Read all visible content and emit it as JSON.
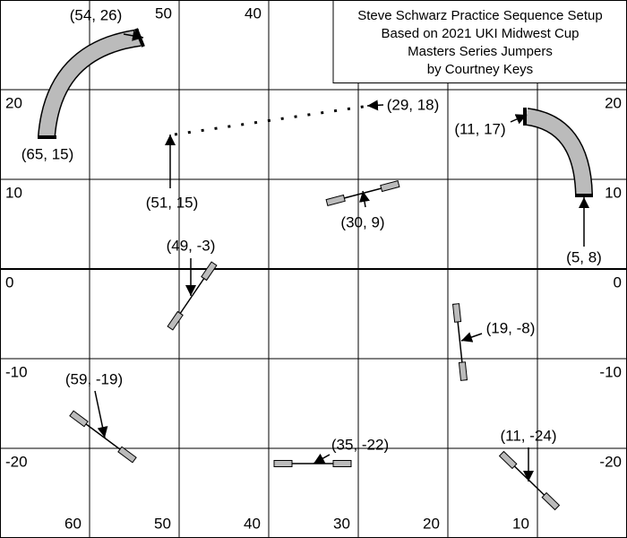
{
  "title": {
    "lines": [
      "Steve Schwarz Practice Sequence Setup",
      "Based on 2021 UKI Midwest Cup",
      "Masters Series Jumpers",
      "by Courtney Keys"
    ]
  },
  "grid_labels": {
    "top": [
      "50",
      "40"
    ],
    "bottom": [
      "60",
      "50",
      "40",
      "30",
      "20",
      "10"
    ],
    "left": [
      "20",
      "10",
      "0",
      "-10",
      "-20"
    ],
    "right": [
      "20",
      "10",
      "0",
      "-10",
      "-20"
    ]
  },
  "markers": [
    "(54, 26)",
    "(65, 15)",
    "(51, 15)",
    "(29, 18)",
    "(11, 17)",
    "(5, 8)",
    "(30, 9)",
    "(49, -3)",
    "(19, -8)",
    "(59, -19)",
    "(35, -22)",
    "(11, -24)"
  ]
}
